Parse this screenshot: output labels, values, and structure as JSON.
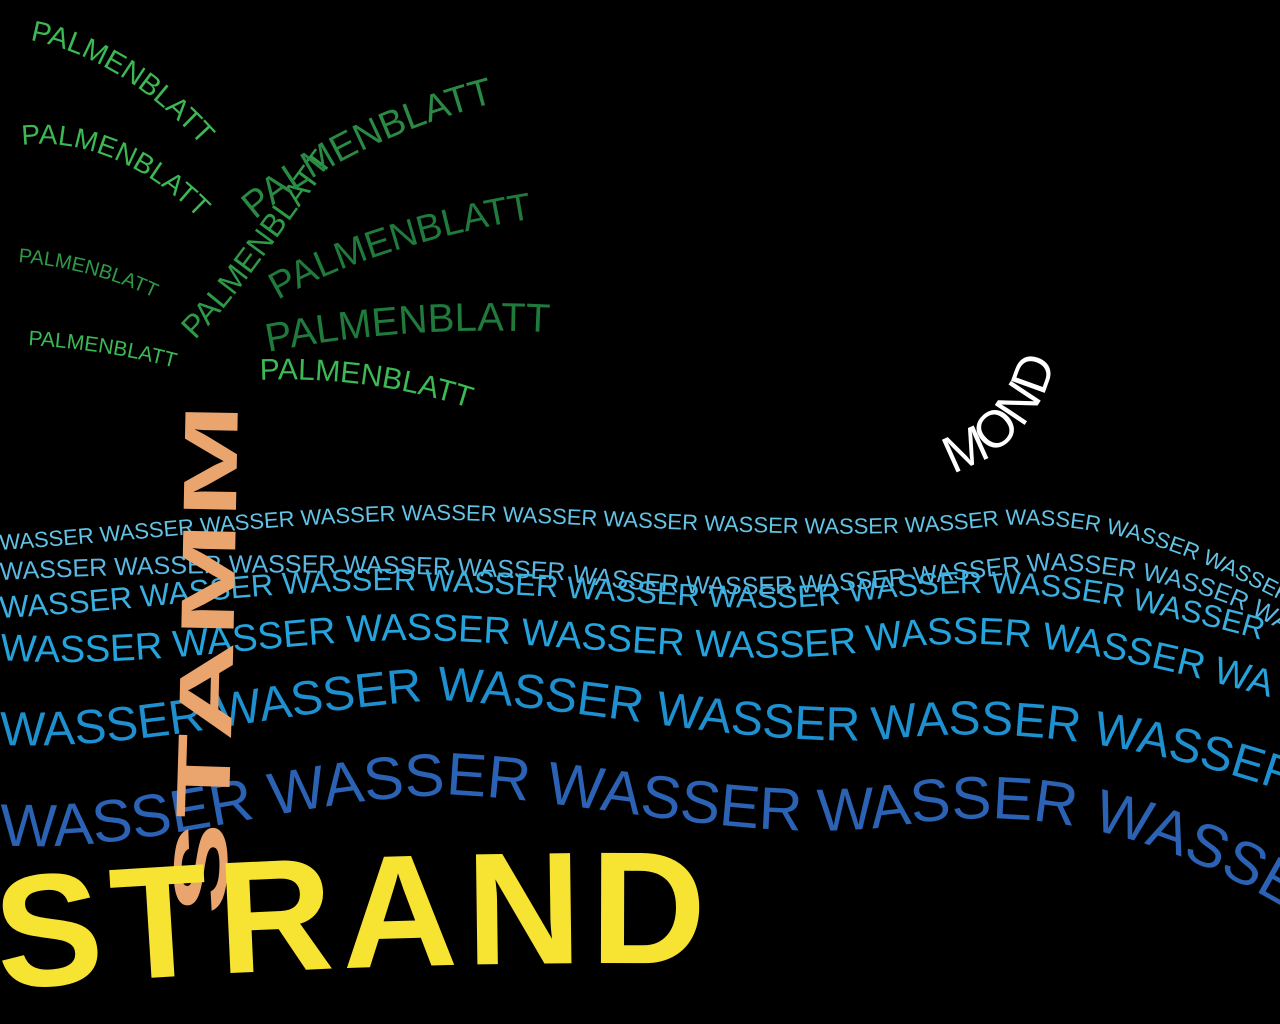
{
  "words": {
    "leaf": "PALMENBLATT",
    "trunk": "STAMM",
    "moon": "MOND",
    "water": "WASSER",
    "beach": "STRAND"
  },
  "colors": {
    "background": "#000000",
    "leaf_light": "#3cb854",
    "leaf_mid": "#2e9a48",
    "leaf_dark": "#1f7a3c",
    "trunk": "#eaa56e",
    "moon": "#ffffff",
    "water_light": "#63c4e6",
    "water_mid": "#25a3dc",
    "water_deep": "#1e8fcf",
    "water_dark": "#2b62b4",
    "beach": "#f6e332"
  }
}
